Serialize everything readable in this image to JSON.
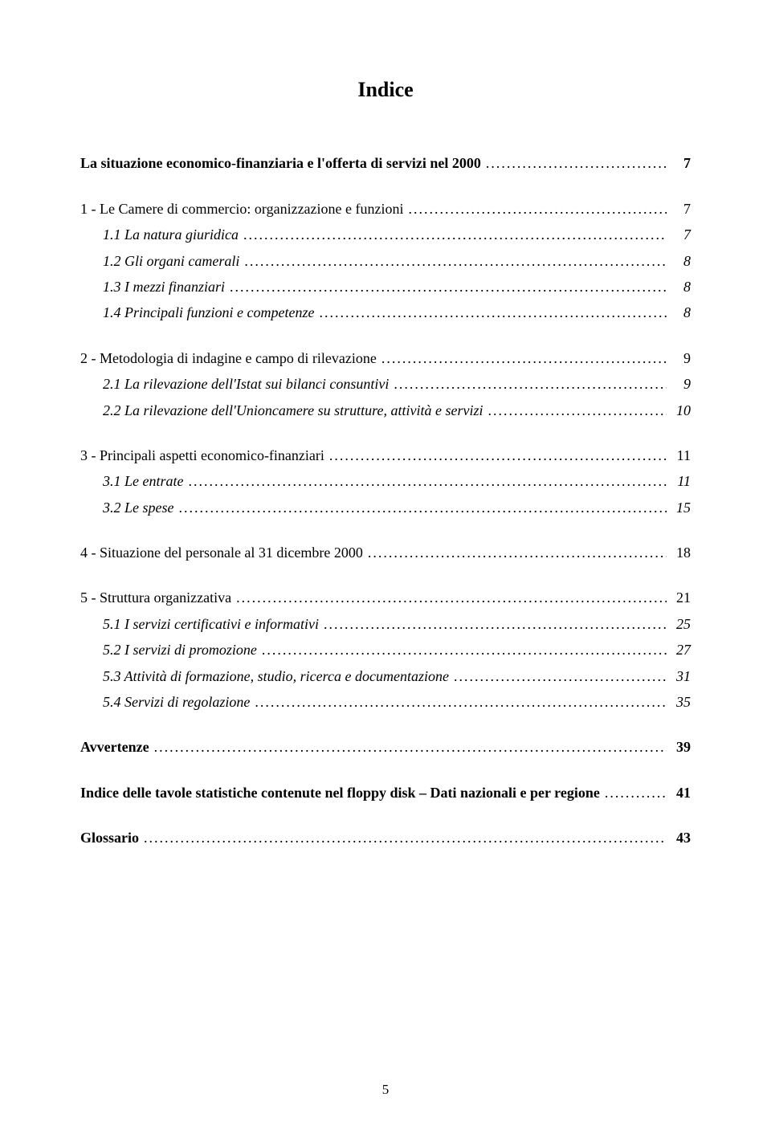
{
  "document": {
    "title": "Indice",
    "page_number": "5",
    "text_color": "#000000",
    "background_color": "#ffffff",
    "title_fontsize": 26,
    "body_fontsize": 18
  },
  "toc": [
    {
      "style": "bold",
      "indent": 0,
      "gap": false,
      "label": "La situazione economico-finanziaria e l'offerta di servizi nel 2000",
      "page": "7"
    },
    {
      "style": "normal",
      "indent": 0,
      "gap": true,
      "label": "1 - Le Camere di commercio: organizzazione e funzioni",
      "page": "7"
    },
    {
      "style": "italic",
      "indent": 1,
      "gap": false,
      "label": "1.1 La natura giuridica",
      "page": "7"
    },
    {
      "style": "italic",
      "indent": 1,
      "gap": false,
      "label": "1.2 Gli organi camerali",
      "page": "8"
    },
    {
      "style": "italic",
      "indent": 1,
      "gap": false,
      "label": "1.3 I mezzi finanziari",
      "page": "8"
    },
    {
      "style": "italic",
      "indent": 1,
      "gap": false,
      "label": "1.4 Principali funzioni e competenze",
      "page": "8"
    },
    {
      "style": "normal",
      "indent": 0,
      "gap": true,
      "label": "2 - Metodologia di indagine e campo di rilevazione",
      "page": "9"
    },
    {
      "style": "italic",
      "indent": 1,
      "gap": false,
      "label": "2.1 La rilevazione dell'Istat sui bilanci consuntivi",
      "page": "9"
    },
    {
      "style": "italic",
      "indent": 1,
      "gap": false,
      "label": "2.2 La rilevazione dell'Unioncamere su strutture, attività e servizi",
      "page": "10"
    },
    {
      "style": "normal",
      "indent": 0,
      "gap": true,
      "label": "3 - Principali aspetti economico-finanziari",
      "page": "11"
    },
    {
      "style": "italic",
      "indent": 1,
      "gap": false,
      "label": "3.1 Le entrate",
      "page": "11"
    },
    {
      "style": "italic",
      "indent": 1,
      "gap": false,
      "label": "3.2 Le spese",
      "page": "15"
    },
    {
      "style": "normal",
      "indent": 0,
      "gap": true,
      "label": "4 - Situazione del personale al 31 dicembre 2000",
      "page": "18"
    },
    {
      "style": "normal",
      "indent": 0,
      "gap": true,
      "label": "5 - Struttura organizzativa",
      "page": "21"
    },
    {
      "style": "italic",
      "indent": 1,
      "gap": false,
      "label": "5.1 I servizi certificativi e informativi",
      "page": "25"
    },
    {
      "style": "italic",
      "indent": 1,
      "gap": false,
      "label": "5.2 I servizi di promozione",
      "page": "27"
    },
    {
      "style": "italic",
      "indent": 1,
      "gap": false,
      "label": "5.3 Attività di formazione, studio, ricerca e documentazione",
      "page": "31"
    },
    {
      "style": "italic",
      "indent": 1,
      "gap": false,
      "label": "5.4 Servizi di regolazione",
      "page": "35"
    },
    {
      "style": "bold",
      "indent": 0,
      "gap": true,
      "label": "Avvertenze",
      "page": "39"
    },
    {
      "style": "bold",
      "indent": 0,
      "gap": true,
      "label": "Indice delle tavole statistiche contenute nel floppy disk – Dati nazionali e per regione",
      "page": "41"
    },
    {
      "style": "bold",
      "indent": 0,
      "gap": true,
      "label": "Glossario",
      "page": "43"
    }
  ]
}
